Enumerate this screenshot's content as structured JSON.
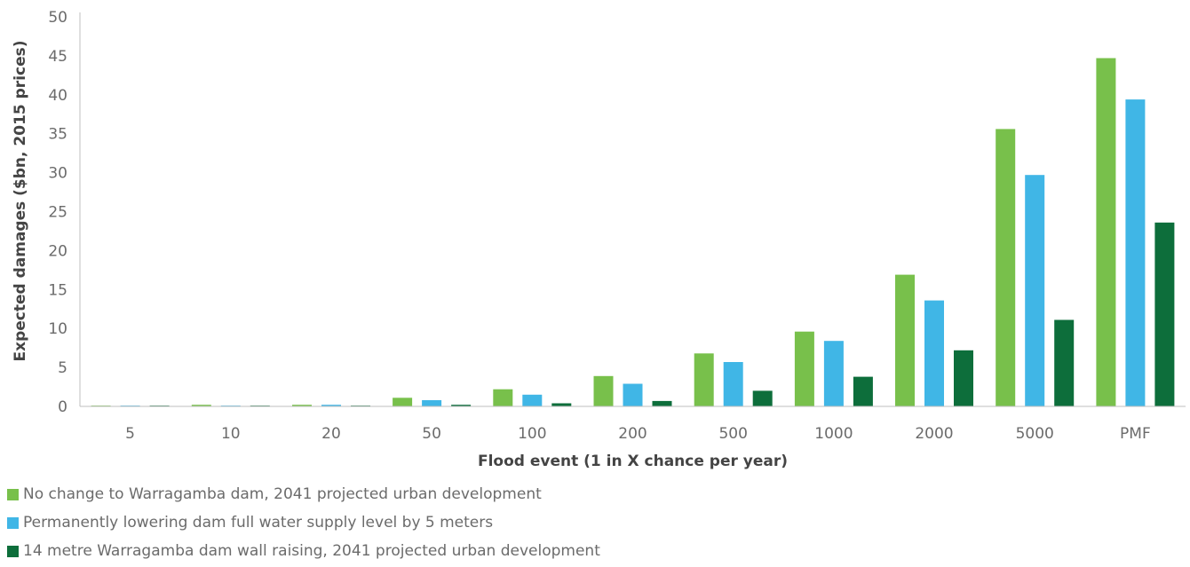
{
  "chart_data": {
    "type": "bar",
    "title": "",
    "xlabel": "Flood event (1 in X chance per year)",
    "ylabel": "Expected damages ($bn, 2015 prices)",
    "ylim": [
      0,
      50
    ],
    "yticks": [
      0,
      5,
      10,
      15,
      20,
      25,
      30,
      35,
      40,
      45,
      50
    ],
    "grid": false,
    "legend_position": "bottom-left",
    "categories": [
      "5",
      "10",
      "20",
      "50",
      "100",
      "200",
      "500",
      "1000",
      "2000",
      "5000",
      "PMF"
    ],
    "series": [
      {
        "name": "No change to Warragamba dam, 2041 projected urban development",
        "color": "#78c04b",
        "values": [
          0.1,
          0.2,
          0.2,
          1.1,
          2.2,
          3.9,
          6.8,
          9.6,
          16.9,
          35.6,
          44.7
        ]
      },
      {
        "name": "Permanently lowering dam full water supply level by 5 meters",
        "color": "#40b6e6",
        "values": [
          0.1,
          0.1,
          0.2,
          0.8,
          1.5,
          2.9,
          5.7,
          8.4,
          13.6,
          29.7,
          39.4
        ]
      },
      {
        "name": "14 metre Warragamba dam wall raising, 2041 projected urban development",
        "color": "#0d6e3b",
        "values": [
          0.1,
          0.1,
          0.1,
          0.2,
          0.4,
          0.7,
          2.0,
          3.8,
          7.2,
          11.1,
          23.6
        ]
      }
    ]
  }
}
